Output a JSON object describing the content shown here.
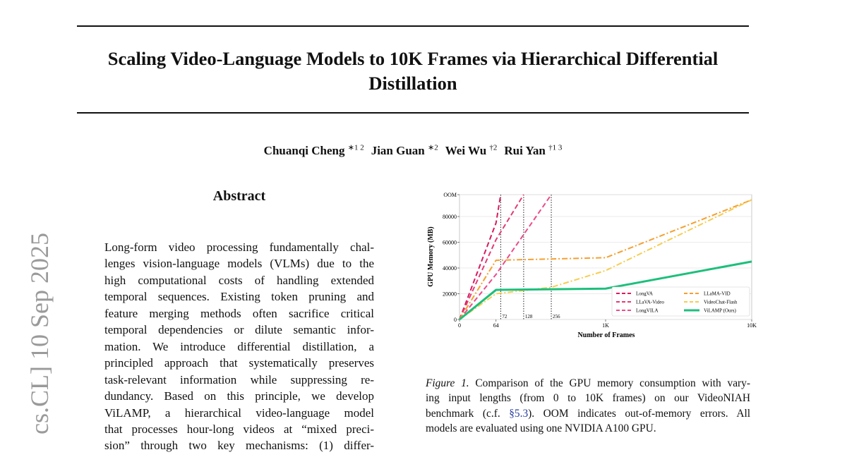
{
  "paper": {
    "title_lines": [
      "Scaling Video-Language Models to 10K Frames via Hierarchical Differential",
      "Distillation"
    ],
    "authors": [
      {
        "name": "Chuanqi Cheng",
        "sup": "∗1 2"
      },
      {
        "name": "Jian Guan",
        "sup": "∗2"
      },
      {
        "name": "Wei Wu",
        "sup": "†2"
      },
      {
        "name": "Rui Yan",
        "sup": "†1 3"
      }
    ],
    "side_stamp": "cs.CL]  10 Sep 2025",
    "abstract_heading": "Abstract",
    "abstract_lines": [
      "Long-form video processing fundamentally chal-",
      "lenges vision-language models (VLMs) due to the",
      "high computational costs of handling extended",
      "temporal sequences. Existing token pruning and",
      "feature merging methods often sacrifice critical",
      "temporal dependencies or dilute semantic infor-",
      "mation. We introduce differential distillation, a",
      "principled approach that systematically preserves",
      "task-relevant information while suppressing re-",
      "dundancy. Based on this principle, we develop",
      "ViLAMP, a hierarchical video-language model",
      "that processes hour-long videos at “mixed preci-",
      "sion” through two key mechanisms: (1) differ-"
    ],
    "caption": {
      "label": "Figure 1.",
      "lines": [
        [
          "Comparison of the GPU memory consumption with vary-"
        ],
        [
          "ing input lengths (from 0 to 10K frames) on our VideoNIAH"
        ],
        [
          "benchmark (c.f. ",
          "§5.3",
          "). OOM indicates out-of-memory errors. All"
        ],
        [
          "models are evaluated using one NVIDIA A100 GPU."
        ]
      ]
    }
  },
  "chart_data": {
    "type": "line",
    "xlabel": "Number of Frames",
    "ylabel": "GPU Memory (MB)",
    "xlim": [
      0,
      10000
    ],
    "xticks": [
      0,
      64,
      {
        "value": 1000,
        "label": "1K"
      },
      {
        "value": 10000,
        "label": "10K"
      }
    ],
    "ylim": [
      0,
      97000
    ],
    "yticks": [
      0,
      20000,
      40000,
      60000,
      80000,
      {
        "value": 97000,
        "label": "OOM"
      }
    ],
    "markers": [
      72,
      128,
      256
    ],
    "legend": "lower right",
    "series": [
      {
        "name": "LongVA",
        "color": "#d81b60",
        "dash": "dashed",
        "x": [
          0,
          64,
          72
        ],
        "values": [
          0,
          75000,
          97000
        ]
      },
      {
        "name": "LLaVA-Video",
        "color": "#e33b75",
        "dash": "dashed",
        "x": [
          0,
          64,
          128
        ],
        "values": [
          0,
          62000,
          97000
        ]
      },
      {
        "name": "LongVILA",
        "color": "#ec4b8c",
        "dash": "dashed",
        "x": [
          0,
          64,
          256
        ],
        "values": [
          0,
          35000,
          97000
        ]
      },
      {
        "name": "LLaMA-VID",
        "color": "#f5a030",
        "dash": "dashdot",
        "x": [
          0,
          64,
          1000,
          10000
        ],
        "values": [
          0,
          46000,
          48000,
          93000
        ]
      },
      {
        "name": "VideoChat-Flash",
        "color": "#f6cd50",
        "dash": "dashdot",
        "x": [
          0,
          64,
          256,
          1000,
          10000
        ],
        "values": [
          0,
          20000,
          25000,
          38000,
          93000
        ]
      },
      {
        "name": "ViLAMP (Ours)",
        "color": "#1dbf7c",
        "dash": "solid",
        "x": [
          0,
          64,
          1000,
          10000
        ],
        "values": [
          0,
          23000,
          24000,
          45000
        ]
      }
    ]
  }
}
